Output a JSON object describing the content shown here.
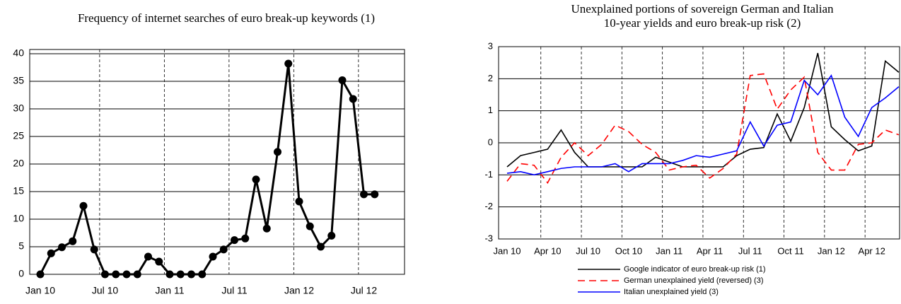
{
  "chart_data": [
    {
      "type": "line",
      "title": [
        "Frequency of internet searches of euro break-up keywords (1)"
      ],
      "categories": [
        "Jan 10",
        null,
        null,
        null,
        null,
        null,
        "Jul 10",
        null,
        null,
        null,
        null,
        null,
        "Jan 11",
        null,
        null,
        null,
        null,
        null,
        "Jul 11",
        null,
        null,
        null,
        null,
        null,
        "Jan 12",
        null,
        null,
        null,
        null,
        null,
        "Jul 12",
        null
      ],
      "series": [
        {
          "name": null,
          "color": "#000000",
          "markers": true,
          "values": [
            0,
            3.8,
            4.9,
            6,
            12.4,
            4.5,
            0,
            0,
            0,
            0,
            3.2,
            2.3,
            0,
            0,
            0,
            0,
            3.2,
            4.5,
            6.2,
            6.5,
            17.2,
            8.3,
            22.2,
            38.2,
            13.2,
            8.7,
            5,
            7,
            35.2,
            31.8,
            14.5,
            14.5
          ]
        }
      ],
      "ylim": [
        0,
        40
      ],
      "yticks": [
        0,
        5,
        10,
        15,
        20,
        25,
        30,
        35,
        40
      ],
      "grid": true
    },
    {
      "type": "line",
      "title": [
        "Unexplained portions of sovereign German and Italian",
        "10-year yields and euro break-up risk (2)"
      ],
      "categories": [
        "Jan 10",
        null,
        null,
        "Apr 10",
        null,
        null,
        "Jul 10",
        null,
        null,
        "Oct 10",
        null,
        null,
        "Jan 11",
        null,
        null,
        "Apr 11",
        null,
        null,
        "Jul 11",
        null,
        null,
        "Oct 11",
        null,
        null,
        "Jan 12",
        null,
        null,
        "Apr 12",
        null,
        null
      ],
      "series": [
        {
          "name": "Google indicator of euro break-up risk (1)",
          "color": "#000000",
          "dash": "solid",
          "values": [
            -0.75,
            -0.4,
            -0.3,
            -0.2,
            0.4,
            -0.3,
            -0.75,
            -0.75,
            -0.75,
            -0.75,
            -0.75,
            -0.45,
            -0.6,
            -0.75,
            -0.75,
            -0.75,
            -0.75,
            -0.4,
            -0.2,
            -0.15,
            0.9,
            0.05,
            1.1,
            2.8,
            0.5,
            0.1,
            -0.25,
            -0.1,
            2.55,
            2.2
          ]
        },
        {
          "name": "German unexplained yield (reversed) (3)",
          "color": "#ff0000",
          "dash": "dashed",
          "values": [
            -1.2,
            -0.65,
            -0.7,
            -1.25,
            -0.45,
            0.0,
            -0.4,
            -0.05,
            0.55,
            0.35,
            -0.05,
            -0.3,
            -0.85,
            -0.75,
            -0.7,
            -1.1,
            -0.8,
            -0.35,
            2.1,
            2.15,
            1.05,
            1.65,
            2.05,
            -0.3,
            -0.85,
            -0.85,
            -0.05,
            0.0,
            0.4,
            0.25
          ]
        },
        {
          "name": "Italian unexplained yield (3)",
          "color": "#0000ff",
          "dash": "solid",
          "values": [
            -0.95,
            -0.9,
            -1.0,
            -0.9,
            -0.8,
            -0.75,
            -0.75,
            -0.75,
            -0.65,
            -0.9,
            -0.65,
            -0.65,
            -0.65,
            -0.55,
            -0.4,
            -0.45,
            -0.35,
            -0.25,
            0.65,
            -0.1,
            0.55,
            0.65,
            1.95,
            1.5,
            2.1,
            0.8,
            0.2,
            1.1,
            1.4,
            1.75
          ]
        }
      ],
      "ylim": [
        -3,
        3
      ],
      "yticks": [
        -3,
        -2,
        -1,
        0,
        1,
        2,
        3
      ],
      "grid": true
    }
  ]
}
